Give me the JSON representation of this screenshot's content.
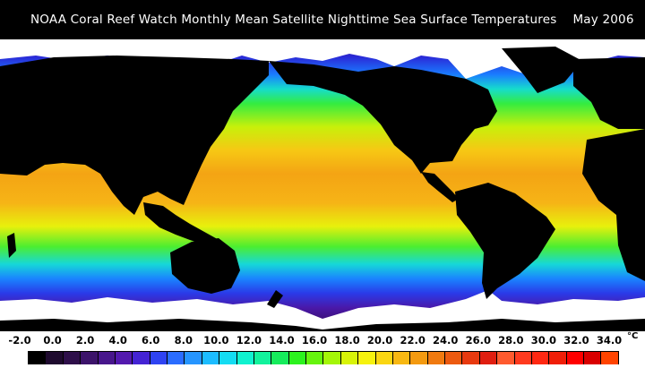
{
  "title": "NOAA Coral Reef Watch Monthly Mean Satellite Nighttime Sea Surface Temperatures    May 2006",
  "legend": {
    "ticks": [
      "-2.0",
      "0.0",
      "2.0",
      "4.0",
      "6.0",
      "8.0",
      "10.0",
      "12.0",
      "14.0",
      "16.0",
      "18.0",
      "20.0",
      "22.0",
      "24.0",
      "26.0",
      "28.0",
      "30.0",
      "32.0",
      "34.0"
    ],
    "unit": "°C",
    "colors": [
      "#000000",
      "#1e0a2e",
      "#2e0f4a",
      "#3c136a",
      "#48168c",
      "#5319ae",
      "#4423d4",
      "#2f43f2",
      "#2a6cff",
      "#2695ff",
      "#1cbcff",
      "#14dcf2",
      "#10f2cf",
      "#12f29c",
      "#16ec5c",
      "#2cf21e",
      "#66f40e",
      "#a4f608",
      "#d8f408",
      "#f6f20e",
      "#fad612",
      "#f8b812",
      "#f49a10",
      "#f07a10",
      "#ec5a10",
      "#e83a10",
      "#e01e10",
      "#ff5a2e",
      "#ff3a1e",
      "#ff2812",
      "#f01e08",
      "#ff0000",
      "#d90000",
      "#ff4400"
    ]
  }
}
